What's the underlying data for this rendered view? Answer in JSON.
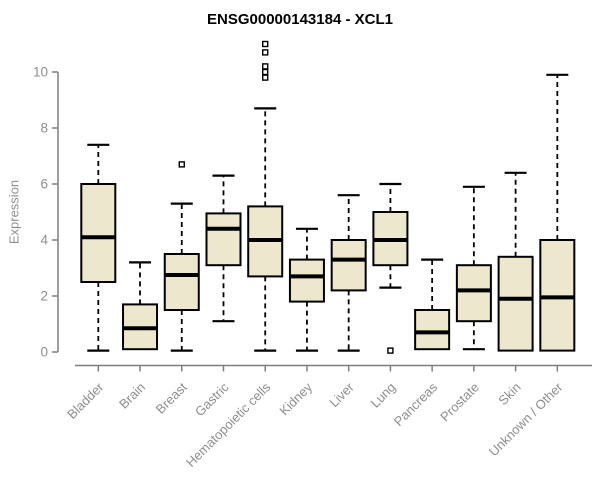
{
  "title": "ENSG00000143184 - XCL1",
  "chart_data": {
    "type": "boxplot",
    "title": "ENSG00000143184 - XCL1",
    "xlabel": "",
    "ylabel": "Expression",
    "ylim": [
      0,
      11.1
    ],
    "yticks": [
      "0",
      "2",
      "4",
      "6",
      "8",
      "10"
    ],
    "ytick_values": [
      0,
      2,
      4,
      6,
      8,
      10
    ],
    "grid": false,
    "legend": "none",
    "colors": {
      "box_fill": "#ece7cd",
      "box_border": "#000000",
      "median": "#000000",
      "whisker": "#000000",
      "axis": "#7f7f7f",
      "tick_text": "#8e8e8e",
      "title_text": "#000000",
      "background": "#ffffff"
    },
    "categories": [
      "Bladder",
      "Brain",
      "Breast",
      "Gastric",
      "Hematopoietic cells",
      "Kidney",
      "Liver",
      "Lung",
      "Pancreas",
      "Prostate",
      "Skin",
      "Unknown / Other"
    ],
    "series": [
      {
        "category": "Bladder",
        "whisker_low": 0.05,
        "q1": 2.5,
        "median": 4.1,
        "q3": 6.0,
        "whisker_high": 7.4,
        "outliers": []
      },
      {
        "category": "Brain",
        "whisker_low": 0.1,
        "q1": 0.1,
        "median": 0.85,
        "q3": 1.7,
        "whisker_high": 3.2,
        "outliers": []
      },
      {
        "category": "Breast",
        "whisker_low": 0.05,
        "q1": 1.5,
        "median": 2.75,
        "q3": 3.5,
        "whisker_high": 5.3,
        "outliers": [
          6.7
        ]
      },
      {
        "category": "Gastric",
        "whisker_low": 1.1,
        "q1": 3.1,
        "median": 4.4,
        "q3": 4.95,
        "whisker_high": 6.3,
        "outliers": []
      },
      {
        "category": "Hematopoietic cells",
        "whisker_low": 0.05,
        "q1": 2.7,
        "median": 4.0,
        "q3": 5.2,
        "whisker_high": 8.7,
        "outliers": [
          9.8,
          10.0,
          10.2,
          10.7,
          11.0
        ]
      },
      {
        "category": "Kidney",
        "whisker_low": 0.05,
        "q1": 1.8,
        "median": 2.7,
        "q3": 3.3,
        "whisker_high": 4.4,
        "outliers": []
      },
      {
        "category": "Liver",
        "whisker_low": 0.05,
        "q1": 2.2,
        "median": 3.3,
        "q3": 4.0,
        "whisker_high": 5.6,
        "outliers": []
      },
      {
        "category": "Lung",
        "whisker_low": 2.3,
        "q1": 3.1,
        "median": 4.0,
        "q3": 5.0,
        "whisker_high": 6.0,
        "outliers": [
          0.05
        ]
      },
      {
        "category": "Pancreas",
        "whisker_low": 0.1,
        "q1": 0.1,
        "median": 0.7,
        "q3": 1.5,
        "whisker_high": 3.3,
        "outliers": []
      },
      {
        "category": "Prostate",
        "whisker_low": 0.1,
        "q1": 1.1,
        "median": 2.2,
        "q3": 3.1,
        "whisker_high": 5.9,
        "outliers": []
      },
      {
        "category": "Skin",
        "whisker_low": 0.05,
        "q1": 0.05,
        "median": 1.9,
        "q3": 3.4,
        "whisker_high": 6.4,
        "outliers": []
      },
      {
        "category": "Unknown / Other",
        "whisker_low": 0.05,
        "q1": 0.05,
        "median": 1.95,
        "q3": 4.0,
        "whisker_high": 9.9,
        "outliers": []
      }
    ]
  }
}
